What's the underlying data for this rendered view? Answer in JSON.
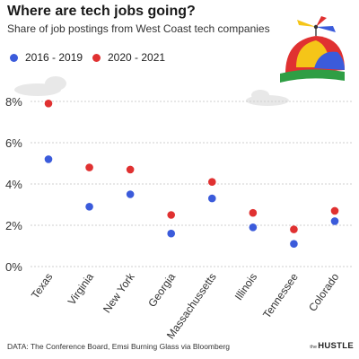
{
  "header": {
    "title": "Where are tech jobs going?",
    "subtitle": "Share of job postings from West Coast tech companies"
  },
  "colors": {
    "series_2016_2019": "#3b5bdb",
    "series_2020_2021": "#e03131",
    "grid": "#cfcfcf",
    "axis_text": "#333333"
  },
  "chart_data": {
    "type": "scatter",
    "categories": [
      "Texas",
      "Virginia",
      "New York",
      "Georgia",
      "Massachussetts",
      "Illinois",
      "Tennessee",
      "Colorado"
    ],
    "series": [
      {
        "name": "2016 - 2019",
        "values": [
          5.2,
          2.9,
          3.5,
          1.6,
          3.3,
          1.9,
          1.1,
          2.2
        ]
      },
      {
        "name": "2020 - 2021",
        "values": [
          7.9,
          4.8,
          4.7,
          2.5,
          4.1,
          2.6,
          1.8,
          2.7
        ]
      }
    ],
    "title": "Where are tech jobs going?",
    "subtitle": "Share of job postings from West Coast tech companies",
    "yticks": [
      "0%",
      "2%",
      "4%",
      "6%",
      "8%"
    ],
    "ylim": [
      0,
      8
    ],
    "grid": true,
    "legend": "top-left"
  },
  "footer": {
    "source": "DATA: The Conference Board, Emsi Burning Glass via Bloomberg",
    "brand_prefix": "the",
    "brand": "HUSTLE"
  }
}
